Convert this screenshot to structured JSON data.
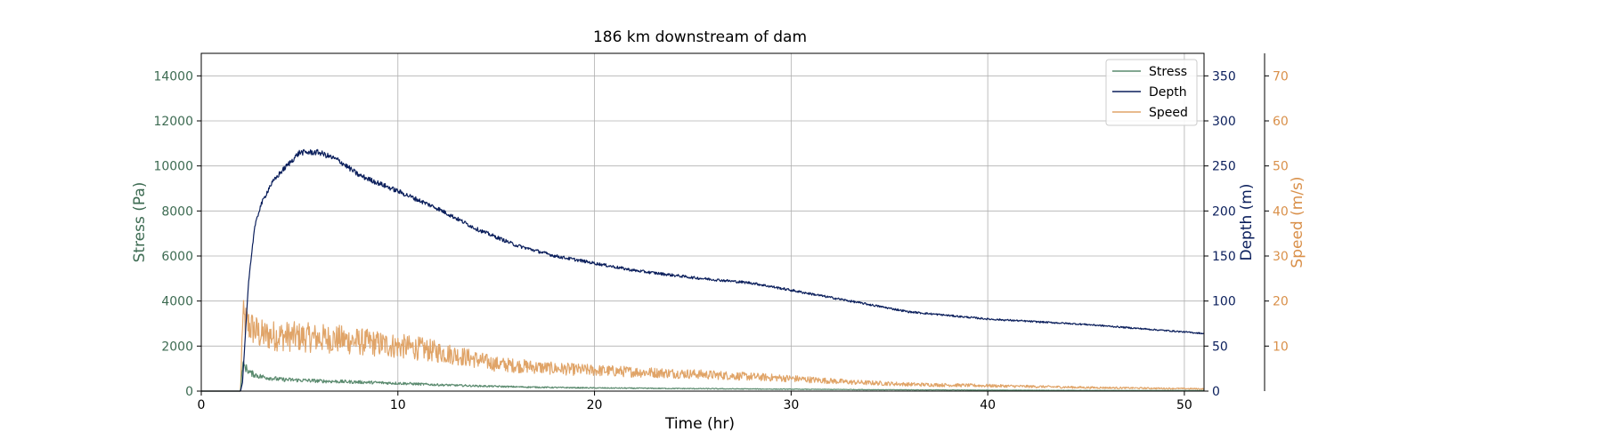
{
  "chart_data": {
    "type": "line",
    "title": "186 km downstream of dam",
    "xlabel": "Time (hr)",
    "xlim": [
      0,
      51
    ],
    "x_ticks": [
      0,
      10,
      20,
      30,
      40,
      50
    ],
    "grid": true,
    "legend_placement": "top-right",
    "axes": [
      {
        "id": "stress",
        "label": "Stress (Pa)",
        "side": "left",
        "color": "#3d6b52",
        "ylim": [
          0,
          15000
        ],
        "ticks": [
          0,
          2000,
          4000,
          6000,
          8000,
          10000,
          12000,
          14000
        ]
      },
      {
        "id": "depth",
        "label": "Depth (m)",
        "side": "right",
        "color": "#0b1f5c",
        "ylim": [
          0,
          375
        ],
        "ticks": [
          0,
          50,
          100,
          150,
          200,
          250,
          300,
          350
        ]
      },
      {
        "id": "speed",
        "label": "Speed (m/s)",
        "side": "right-outer",
        "color": "#d9904a",
        "ylim": [
          0,
          75
        ],
        "ticks": [
          10,
          20,
          30,
          40,
          50,
          60,
          70
        ]
      }
    ],
    "series": [
      {
        "name": "Stress",
        "axis": "stress",
        "color": "#5a8a6e",
        "noise": 0.18,
        "points": [
          [
            0,
            0
          ],
          [
            2,
            0
          ],
          [
            2.1,
            1200
          ],
          [
            2.5,
            800
          ],
          [
            3,
            650
          ],
          [
            4,
            520
          ],
          [
            6,
            450
          ],
          [
            8,
            400
          ],
          [
            10,
            350
          ],
          [
            12,
            280
          ],
          [
            14,
            230
          ],
          [
            16,
            190
          ],
          [
            18,
            160
          ],
          [
            20,
            140
          ],
          [
            25,
            110
          ],
          [
            30,
            85
          ],
          [
            35,
            60
          ],
          [
            40,
            45
          ],
          [
            45,
            30
          ],
          [
            51,
            25
          ]
        ]
      },
      {
        "name": "Depth",
        "axis": "depth",
        "color": "#0b1f5c",
        "noise": 0.012,
        "points": [
          [
            0,
            0
          ],
          [
            2,
            0
          ],
          [
            2.1,
            10
          ],
          [
            2.4,
            120
          ],
          [
            2.7,
            180
          ],
          [
            3,
            205
          ],
          [
            3.5,
            228
          ],
          [
            4,
            242
          ],
          [
            5,
            265
          ],
          [
            6,
            265
          ],
          [
            7,
            256
          ],
          [
            8,
            240
          ],
          [
            10,
            222
          ],
          [
            12,
            203
          ],
          [
            14,
            180
          ],
          [
            16,
            162
          ],
          [
            18,
            150
          ],
          [
            20,
            142
          ],
          [
            22,
            134
          ],
          [
            25,
            126
          ],
          [
            28,
            120
          ],
          [
            30,
            112
          ],
          [
            33,
            100
          ],
          [
            36,
            88
          ],
          [
            40,
            80
          ],
          [
            45,
            74
          ],
          [
            51,
            64
          ]
        ]
      },
      {
        "name": "Speed",
        "axis": "speed",
        "color": "#e0a468",
        "noise": 0.28,
        "points": [
          [
            0,
            0
          ],
          [
            2,
            0
          ],
          [
            2.1,
            16
          ],
          [
            2.3,
            15
          ],
          [
            3,
            12.5
          ],
          [
            5,
            12
          ],
          [
            7,
            11.5
          ],
          [
            9,
            10.5
          ],
          [
            11,
            9.5
          ],
          [
            13,
            8
          ],
          [
            15,
            6
          ],
          [
            18,
            5
          ],
          [
            20,
            4.6
          ],
          [
            25,
            3.8
          ],
          [
            30,
            2.8
          ],
          [
            33,
            2
          ],
          [
            36,
            1.5
          ],
          [
            40,
            1.2
          ],
          [
            45,
            0.8
          ],
          [
            51,
            0.5
          ]
        ]
      }
    ]
  }
}
